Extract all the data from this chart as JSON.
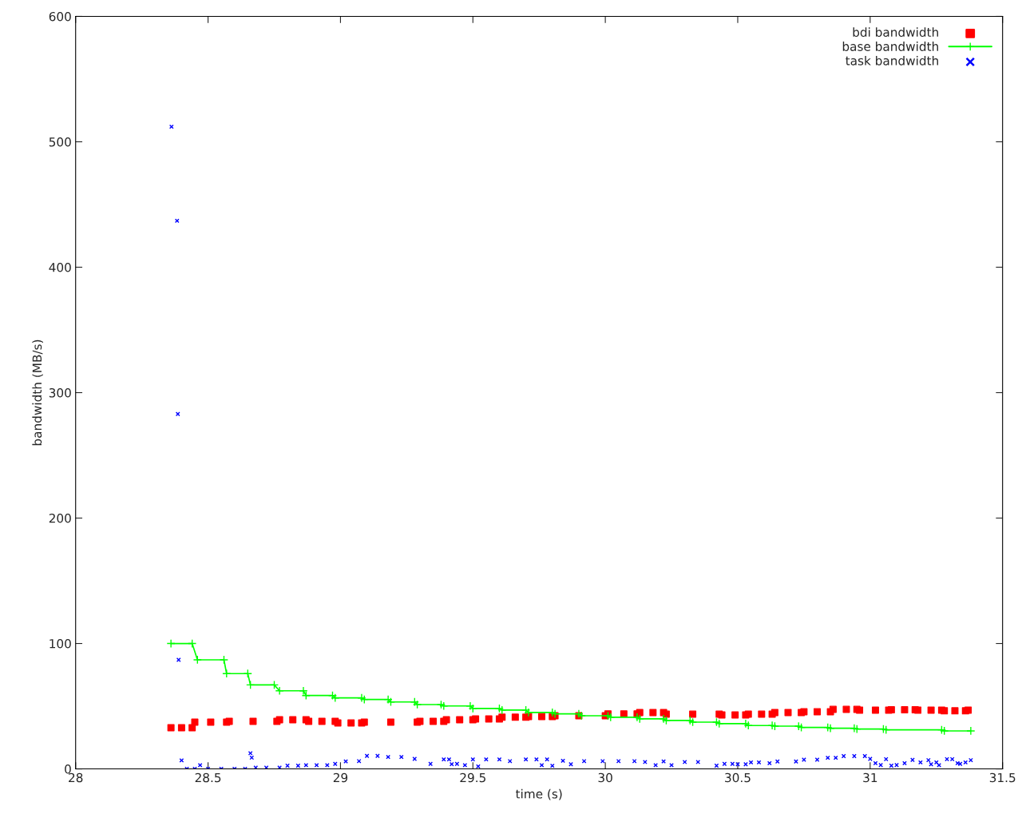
{
  "chart_data": {
    "type": "scatter",
    "xlabel": "time (s)",
    "ylabel": "bandwidth (MB/s)",
    "xlim": [
      28,
      31.5
    ],
    "xticks": [
      28,
      28.5,
      29,
      29.5,
      30,
      30.5,
      31,
      31.5
    ],
    "ylim": [
      0,
      600
    ],
    "yticks": [
      0,
      100,
      200,
      300,
      400,
      500,
      600
    ],
    "legend": "top right",
    "series": [
      {
        "name": "bdi bandwidth",
        "marker": "square",
        "color": "#ff0000",
        "x": [
          28.36,
          28.4,
          28.44,
          28.45,
          28.51,
          28.57,
          28.58,
          28.67,
          28.76,
          28.77,
          28.82,
          28.87,
          28.88,
          28.93,
          28.98,
          28.99,
          29.04,
          29.08,
          29.09,
          29.19,
          29.29,
          29.3,
          29.35,
          29.39,
          29.4,
          29.45,
          29.5,
          29.51,
          29.56,
          29.6,
          29.61,
          29.66,
          29.7,
          29.71,
          29.76,
          29.8,
          29.81,
          29.9,
          30.0,
          30.01,
          30.07,
          30.12,
          30.13,
          30.18,
          30.22,
          30.23,
          30.33,
          30.43,
          30.44,
          30.49,
          30.53,
          30.54,
          30.59,
          30.63,
          30.64,
          30.69,
          30.74,
          30.75,
          30.8,
          30.85,
          30.86,
          30.91,
          30.95,
          30.96,
          31.02,
          31.07,
          31.08,
          31.13,
          31.17,
          31.18,
          31.23,
          31.27,
          31.28,
          31.32,
          31.36,
          31.37
        ],
        "values": [
          32.9,
          32.9,
          32.9,
          37.3,
          37.3,
          37.3,
          38.0,
          38.0,
          38.0,
          39.2,
          39.2,
          39.2,
          38.0,
          38.0,
          38.0,
          36.7,
          36.7,
          36.7,
          37.3,
          37.3,
          37.3,
          38.0,
          38.0,
          38.0,
          39.2,
          39.2,
          39.2,
          39.9,
          39.9,
          39.9,
          41.2,
          41.2,
          41.2,
          41.8,
          41.8,
          41.8,
          42.4,
          42.4,
          42.4,
          43.9,
          43.9,
          43.9,
          45.0,
          45.0,
          45.0,
          43.7,
          43.7,
          43.7,
          43.1,
          43.1,
          43.1,
          43.7,
          43.7,
          43.7,
          45.0,
          45.0,
          45.0,
          45.6,
          45.6,
          45.6,
          47.5,
          47.5,
          47.5,
          46.9,
          46.9,
          46.9,
          47.2,
          47.2,
          47.2,
          46.9,
          46.9,
          46.9,
          46.3,
          46.3,
          46.3,
          46.9
        ]
      },
      {
        "name": "base bandwidth",
        "type": "line",
        "marker": "cross",
        "color": "#00ff00",
        "x": [
          28.36,
          28.44,
          28.46,
          28.56,
          28.57,
          28.65,
          28.66,
          28.75,
          28.77,
          28.86,
          28.87,
          28.97,
          28.98,
          29.08,
          29.09,
          29.18,
          29.19,
          29.28,
          29.29,
          29.38,
          29.39,
          29.49,
          29.5,
          29.6,
          29.61,
          29.7,
          29.71,
          29.8,
          29.81,
          29.9,
          29.91,
          30.01,
          30.02,
          30.12,
          30.13,
          30.22,
          30.23,
          30.32,
          30.33,
          30.42,
          30.43,
          30.53,
          30.54,
          30.63,
          30.64,
          30.73,
          30.74,
          30.84,
          30.85,
          30.94,
          30.95,
          31.05,
          31.06,
          31.27,
          31.28,
          31.38
        ],
        "values": [
          100,
          100,
          87,
          87,
          76,
          76,
          67,
          67,
          62.3,
          62.3,
          58.5,
          58.5,
          56.6,
          56.6,
          55.4,
          55.4,
          53.4,
          53.4,
          51.3,
          51.3,
          50.2,
          50.2,
          48.2,
          48.2,
          46.9,
          46.9,
          45.0,
          45.0,
          43.9,
          43.9,
          42.4,
          42.4,
          41.2,
          41.2,
          39.9,
          39.9,
          38.6,
          38.6,
          37.3,
          37.3,
          36.1,
          36.1,
          34.6,
          34.6,
          34.1,
          34.1,
          33.1,
          33.1,
          32.4,
          32.4,
          31.8,
          31.8,
          31.2,
          31.2,
          30.3,
          30.3
        ]
      },
      {
        "name": "task bandwidth",
        "marker": "cross",
        "color": "#0000ff",
        "x": [
          28.362,
          28.383,
          28.386,
          28.389,
          28.4,
          28.42,
          28.45,
          28.47,
          28.5,
          28.55,
          28.6,
          28.64,
          28.66,
          28.665,
          28.68,
          28.72,
          28.77,
          28.8,
          28.84,
          28.87,
          28.91,
          28.95,
          28.98,
          29.02,
          29.07,
          29.1,
          29.14,
          29.18,
          29.23,
          29.28,
          29.34,
          29.39,
          29.41,
          29.42,
          29.44,
          29.47,
          29.5,
          29.52,
          29.55,
          29.6,
          29.64,
          29.7,
          29.74,
          29.76,
          29.78,
          29.8,
          29.84,
          29.87,
          29.92,
          29.99,
          30.05,
          30.11,
          30.15,
          30.19,
          30.22,
          30.25,
          30.3,
          30.35,
          30.42,
          30.45,
          30.48,
          30.5,
          30.53,
          30.55,
          30.58,
          30.62,
          30.65,
          30.72,
          30.75,
          30.8,
          30.84,
          30.87,
          30.9,
          30.94,
          30.98,
          31.0,
          31.02,
          31.04,
          31.06,
          31.08,
          31.1,
          31.13,
          31.16,
          31.19,
          31.22,
          31.23,
          31.25,
          31.26,
          31.29,
          31.31,
          31.33,
          31.34,
          31.36,
          31.38
        ],
        "values": [
          512,
          437,
          283,
          87,
          6.8,
          0,
          0,
          3,
          0,
          0,
          0,
          0,
          12.5,
          9,
          1,
          1,
          1,
          2.6,
          2.6,
          3,
          3,
          3,
          4,
          6,
          6.2,
          10.4,
          10.4,
          9.5,
          9.5,
          8,
          4,
          7.6,
          7.6,
          3.8,
          4,
          3,
          7.6,
          2,
          7.6,
          7.6,
          6.2,
          7.6,
          7.6,
          3,
          7.6,
          2.5,
          6.5,
          3.7,
          6.2,
          6.2,
          6.2,
          6.2,
          5.5,
          3,
          6,
          3,
          5.5,
          5.5,
          2.6,
          4,
          4,
          3.7,
          3.7,
          5.2,
          5.2,
          4.6,
          5.9,
          5.9,
          7.4,
          7.4,
          8.9,
          8.9,
          10.2,
          10.2,
          10.2,
          8,
          4.6,
          3.1,
          7.8,
          2.6,
          3.1,
          4.6,
          7.2,
          5.2,
          7,
          3.7,
          5.2,
          3,
          7.8,
          7.8,
          4.6,
          4,
          5.2,
          7
        ]
      }
    ]
  }
}
